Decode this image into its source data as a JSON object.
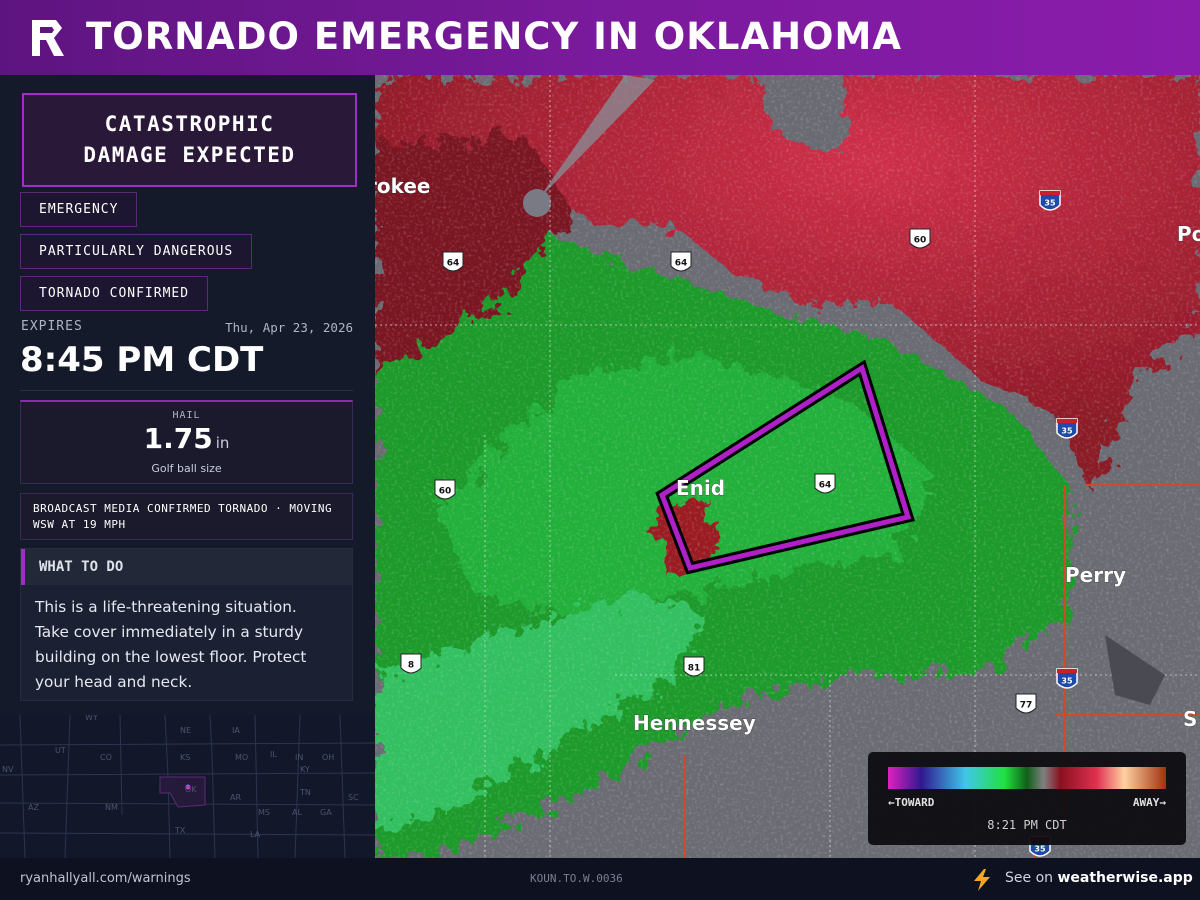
{
  "header": {
    "title": "TORNADO EMERGENCY IN OKLAHOMA"
  },
  "sidebar": {
    "headline": "CATASTROPHIC DAMAGE EXPECTED",
    "tags": [
      "EMERGENCY",
      "PARTICULARLY DANGEROUS",
      "TORNADO CONFIRMED"
    ],
    "expires_label": "EXPIRES",
    "date": "Thu, Apr 23, 2026",
    "expires_time": "8:45 PM CDT",
    "hail": {
      "label": "HAIL",
      "size": "1.75",
      "unit": "in",
      "description": "Golf ball size"
    },
    "details": "BROADCAST MEDIA CONFIRMED TORNADO · MOVING WSW AT 19 MPH",
    "what_to_do": {
      "title": "WHAT TO DO",
      "text": "This is a life-threatening situation. Take cover immediately in a sturdy building on the lowest floor. Protect your head and neck."
    }
  },
  "minimap": {
    "states": [
      "WY",
      "NE",
      "IA",
      "NV",
      "UT",
      "CO",
      "KS",
      "MO",
      "IL",
      "IN",
      "KY",
      "OH",
      "OK",
      "AR",
      "TN",
      "AZ",
      "NM",
      "MS",
      "AL",
      "GA",
      "SC",
      "TX",
      "LA"
    ]
  },
  "map": {
    "places": [
      "rokee",
      "Enid",
      "Perry",
      "Hennessey",
      "Po",
      "S"
    ],
    "highways": [
      "64",
      "64",
      "60",
      "60",
      "64",
      "81",
      "8",
      "77"
    ],
    "interstates": [
      "35",
      "35",
      "35",
      "35"
    ]
  },
  "legend": {
    "toward": "←TOWARD",
    "away": "AWAY→",
    "time": "8:21 PM CDT"
  },
  "footer": {
    "url": "ryanhallyall.com/warnings",
    "id": "KOUN.TO.W.0036",
    "see_on": "See on",
    "site": "weatherwise.app"
  }
}
